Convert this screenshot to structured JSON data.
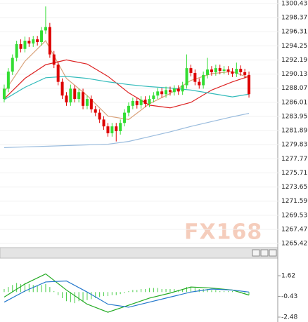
{
  "chart_data": [
    {
      "type": "candlestick",
      "watermark": "FX168",
      "xlim": [
        0,
        60
      ],
      "ylim": [
        1265.42,
        1300.43
      ],
      "yticks": [
        1300.43,
        1298.37,
        1296.31,
        1294.25,
        1292.19,
        1290.13,
        1288.07,
        1286.01,
        1283.95,
        1281.89,
        1279.83,
        1277.77,
        1275.71,
        1273.65,
        1271.59,
        1269.53,
        1267.47,
        1265.42
      ],
      "grid": true,
      "up_color": "#33dd33",
      "down_color": "#dd0000",
      "open": [
        1286.5,
        1288.0,
        1290.5,
        1292.5,
        1294.5,
        1293.8,
        1295.0,
        1294.6,
        1295.2,
        1294.8,
        1296.5,
        1297.0,
        1293.0,
        1291.5,
        1289.0,
        1287.0,
        1286.0,
        1288.0,
        1286.5,
        1287.5,
        1285.5,
        1286.5,
        1285.0,
        1284.5,
        1283.5,
        1282.5,
        1281.5,
        1282.5,
        1281.8,
        1283.0,
        1284.5,
        1285.5,
        1286.2,
        1285.6,
        1286.4,
        1285.8,
        1286.5,
        1287.0,
        1287.6,
        1287.2,
        1287.8,
        1287.5,
        1288.0,
        1287.6,
        1288.5,
        1291.0,
        1290.3,
        1289.0,
        1288.5,
        1290.0,
        1290.8,
        1290.4,
        1291.0,
        1290.6,
        1290.8,
        1290.5,
        1290.2,
        1290.9,
        1290.4,
        1290.0
      ],
      "high": [
        1288.6,
        1291.0,
        1293.0,
        1295.0,
        1295.2,
        1295.6,
        1295.5,
        1295.7,
        1295.7,
        1297.0,
        1300.0,
        1297.6,
        1293.5,
        1292.0,
        1289.5,
        1287.5,
        1288.6,
        1288.5,
        1288.0,
        1288.0,
        1287.0,
        1287.0,
        1285.5,
        1285.0,
        1284.0,
        1283.0,
        1283.0,
        1283.0,
        1283.5,
        1285.0,
        1286.0,
        1286.7,
        1286.7,
        1286.9,
        1286.9,
        1287.0,
        1287.5,
        1288.1,
        1288.1,
        1288.3,
        1288.3,
        1288.5,
        1288.5,
        1289.0,
        1293.0,
        1291.5,
        1290.8,
        1289.5,
        1290.5,
        1292.5,
        1291.3,
        1291.5,
        1291.5,
        1291.3,
        1291.3,
        1291.0,
        1291.8,
        1291.4,
        1290.9,
        1290.5
      ],
      "low": [
        1286.0,
        1287.5,
        1290.0,
        1292.0,
        1293.3,
        1293.3,
        1294.1,
        1294.1,
        1294.3,
        1294.3,
        1296.0,
        1292.5,
        1291.0,
        1288.5,
        1286.5,
        1285.5,
        1285.5,
        1286.0,
        1286.0,
        1285.0,
        1285.0,
        1284.5,
        1284.0,
        1283.0,
        1282.0,
        1281.0,
        1281.0,
        1280.3,
        1281.3,
        1282.5,
        1284.0,
        1285.0,
        1285.1,
        1285.1,
        1285.3,
        1285.3,
        1286.0,
        1286.5,
        1286.7,
        1286.7,
        1287.0,
        1287.0,
        1287.1,
        1287.1,
        1288.0,
        1289.8,
        1288.5,
        1288.0,
        1288.0,
        1289.5,
        1289.9,
        1289.9,
        1290.1,
        1290.1,
        1290.0,
        1289.7,
        1289.7,
        1289.9,
        1289.5,
        1286.7
      ],
      "close": [
        1288.0,
        1290.5,
        1292.5,
        1294.5,
        1293.8,
        1295.0,
        1294.6,
        1295.2,
        1294.8,
        1296.5,
        1297.0,
        1293.0,
        1291.5,
        1289.0,
        1287.0,
        1286.0,
        1288.0,
        1286.5,
        1287.5,
        1285.5,
        1286.5,
        1285.0,
        1284.5,
        1283.5,
        1282.5,
        1281.5,
        1282.5,
        1281.8,
        1283.0,
        1284.5,
        1285.5,
        1286.2,
        1285.6,
        1286.4,
        1285.8,
        1286.5,
        1287.0,
        1287.6,
        1287.2,
        1287.8,
        1287.5,
        1288.0,
        1287.6,
        1288.5,
        1291.0,
        1290.3,
        1289.0,
        1288.5,
        1290.0,
        1290.8,
        1290.4,
        1291.0,
        1290.6,
        1290.8,
        1290.5,
        1290.2,
        1290.9,
        1290.4,
        1290.0,
        1287.2
      ],
      "series": [
        {
          "color": "#d9a27a",
          "x": [
            0,
            5,
            10,
            15,
            20,
            25,
            30,
            35,
            40,
            45,
            50,
            55,
            59
          ],
          "values": [
            1287.5,
            1292.0,
            1295.0,
            1289.5,
            1287.0,
            1284.0,
            1283.5,
            1285.8,
            1287.3,
            1289.2,
            1290.2,
            1290.5,
            1289.6
          ]
        },
        {
          "color": "#dd2222",
          "x": [
            0,
            5,
            10,
            15,
            20,
            25,
            30,
            35,
            40,
            45,
            50,
            55,
            59
          ],
          "values": [
            1286.5,
            1289.5,
            1291.5,
            1292.2,
            1291.6,
            1289.8,
            1287.4,
            1285.6,
            1285.2,
            1286.0,
            1287.8,
            1289.0,
            1289.8
          ]
        },
        {
          "color": "#33bbbb",
          "x": [
            0,
            5,
            10,
            15,
            20,
            25,
            30,
            35,
            40,
            45,
            50,
            55,
            59
          ],
          "values": [
            1286.4,
            1288.2,
            1289.6,
            1289.8,
            1289.5,
            1289.0,
            1288.6,
            1288.3,
            1288.1,
            1287.8,
            1287.3,
            1286.8,
            1287.2
          ]
        },
        {
          "color": "#99bbdd",
          "x": [
            0,
            5,
            10,
            15,
            20,
            25,
            30,
            35,
            40,
            45,
            50,
            55,
            59
          ],
          "values": [
            1279.4,
            1279.5,
            1279.6,
            1279.7,
            1279.8,
            1279.9,
            1280.3,
            1281.0,
            1281.7,
            1282.5,
            1283.2,
            1283.9,
            1284.4
          ]
        }
      ]
    },
    {
      "type": "macd",
      "xlim": [
        0,
        60
      ],
      "ylim": [
        -2.48,
        1.62
      ],
      "yticks": [
        1.62,
        -0.43,
        -2.48
      ],
      "hist_color": "#44cc44",
      "histogram": [
        0.3,
        0.5,
        0.7,
        0.9,
        0.8,
        0.9,
        0.8,
        0.7,
        0.6,
        0.7,
        0.8,
        0.5,
        0.1,
        -0.3,
        -0.6,
        -0.9,
        -1.0,
        -1.1,
        -0.9,
        -0.9,
        -0.8,
        -0.7,
        -0.6,
        -0.5,
        -0.4,
        -0.4,
        -0.3,
        -0.3,
        -0.2,
        -0.1,
        0.1,
        0.2,
        0.2,
        0.3,
        0.3,
        0.4,
        0.4,
        0.4,
        0.3,
        0.3,
        0.3,
        0.3,
        0.2,
        0.3,
        0.5,
        0.5,
        0.4,
        0.3,
        0.3,
        0.3,
        0.2,
        0.2,
        0.1,
        0.1,
        0.1,
        0.1,
        0.0,
        -0.1,
        -0.1,
        -0.3
      ],
      "series": [
        {
          "color": "#22aa22",
          "x": [
            0,
            5,
            10,
            15,
            20,
            25,
            30,
            35,
            40,
            45,
            50,
            55,
            59
          ],
          "values": [
            -0.5,
            0.8,
            1.8,
            0.2,
            -1.2,
            -2.0,
            -1.3,
            -0.6,
            -0.1,
            0.5,
            0.4,
            0.2,
            -0.3
          ]
        },
        {
          "color": "#2277cc",
          "x": [
            0,
            5,
            10,
            15,
            20,
            25,
            30,
            35,
            40,
            45,
            50,
            55,
            59
          ],
          "values": [
            -1.0,
            0.1,
            1.0,
            1.1,
            0.0,
            -1.2,
            -1.5,
            -1.0,
            -0.5,
            0.0,
            0.3,
            0.2,
            0.0
          ]
        }
      ]
    }
  ]
}
